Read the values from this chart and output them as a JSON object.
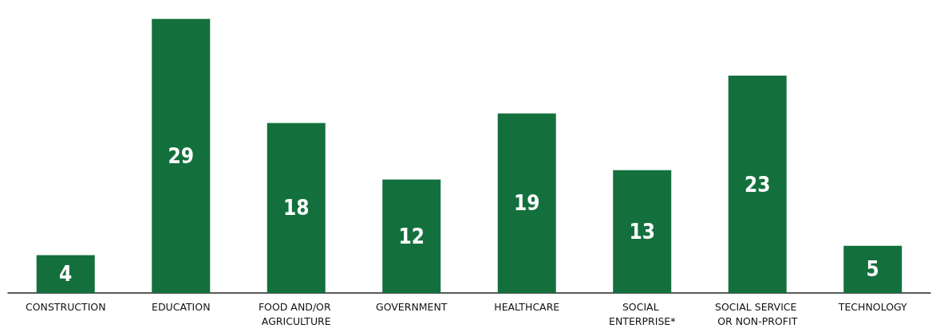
{
  "chart_data": {
    "type": "bar",
    "categories": [
      "CONSTRUCTION",
      "EDUCATION",
      "FOOD AND/OR AGRICULTURE",
      "GOVERNMENT",
      "HEALTHCARE",
      "SOCIAL ENTERPRISE*",
      "SOCIAL SERVICE OR NON-PROFIT",
      "TECHNOLOGY"
    ],
    "values": [
      4,
      29,
      18,
      12,
      19,
      13,
      23,
      5
    ],
    "color": "#13703d",
    "data_labels": true
  }
}
